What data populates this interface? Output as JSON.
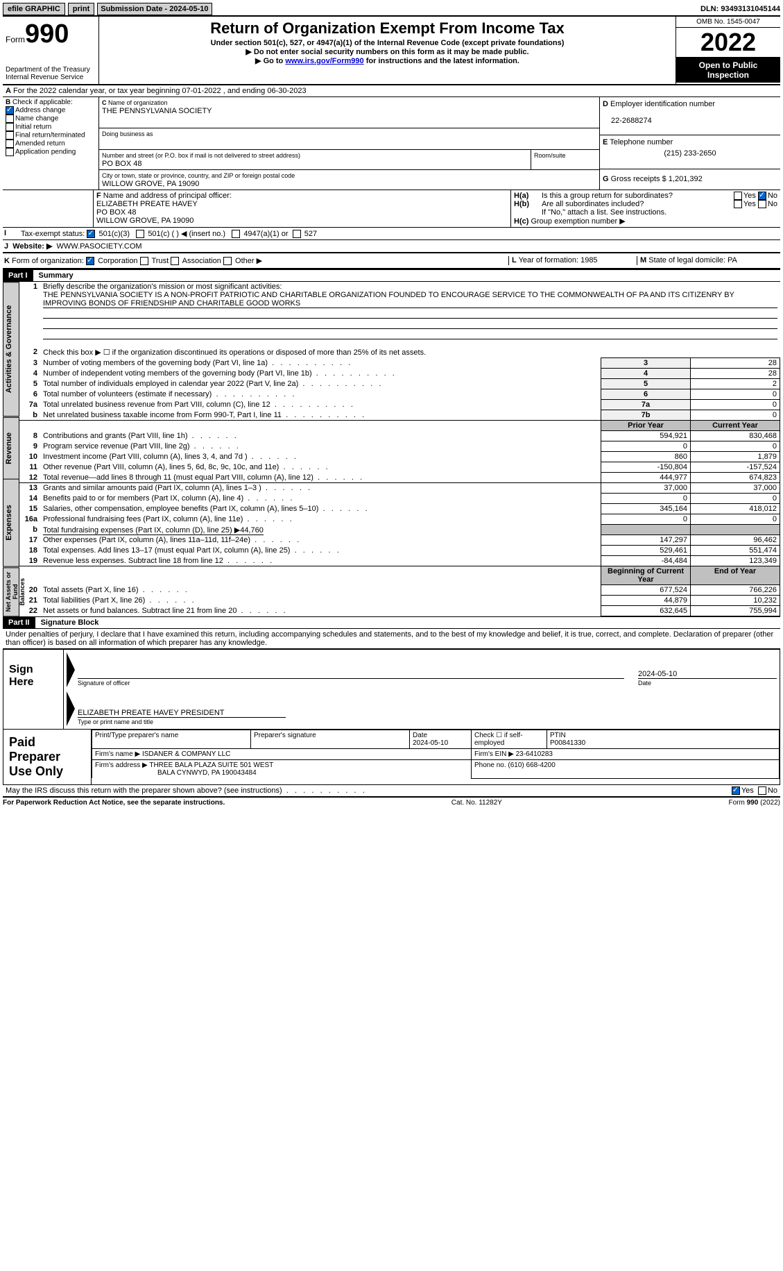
{
  "topbar": {
    "efile": "efile GRAPHIC",
    "print": "print",
    "subdate_label": "Submission Date - 2024-05-10",
    "dln": "DLN: 93493131045144"
  },
  "header": {
    "form_label": "Form",
    "form_num": "990",
    "dept": "Department of the Treasury",
    "irs": "Internal Revenue Service",
    "title": "Return of Organization Exempt From Income Tax",
    "subtitle": "Under section 501(c), 527, or 4947(a)(1) of the Internal Revenue Code (except private foundations)",
    "note1": "Do not enter social security numbers on this form as it may be made public.",
    "note2_pre": "Go to ",
    "note2_link": "www.irs.gov/Form990",
    "note2_post": " for instructions and the latest information.",
    "omb": "OMB No. 1545-0047",
    "year": "2022",
    "open": "Open to Public Inspection"
  },
  "lineA": "For the 2022 calendar year, or tax year beginning 07-01-2022   , and ending 06-30-2023",
  "sectionB": {
    "label": "Check if applicable:",
    "addr": "Address change",
    "name": "Name change",
    "initial": "Initial return",
    "final": "Final return/terminated",
    "amended": "Amended return",
    "app": "Application pending"
  },
  "sectionC": {
    "name_label": "Name of organization",
    "name": "THE PENNSYLVANIA SOCIETY",
    "dba_label": "Doing business as",
    "addr_label": "Number and street (or P.O. box if mail is not delivered to street address)",
    "room_label": "Room/suite",
    "addr": "PO BOX 48",
    "city_label": "City or town, state or province, country, and ZIP or foreign postal code",
    "city": "WILLOW GROVE, PA  19090"
  },
  "sectionD": {
    "label": "Employer identification number",
    "ein": "22-2688274"
  },
  "sectionE": {
    "label": "Telephone number",
    "phone": "(215) 233-2650"
  },
  "sectionG": {
    "label": "Gross receipts $",
    "val": "1,201,392"
  },
  "sectionF": {
    "label": "Name and address of principal officer:",
    "name": "ELIZABETH PREATE HAVEY",
    "addr1": "PO BOX 48",
    "addr2": "WILLOW GROVE, PA  19090"
  },
  "sectionH": {
    "a": "Is this a group return for subordinates?",
    "b": "Are all subordinates included?",
    "b_note": "If \"No,\" attach a list. See instructions.",
    "c": "Group exemption number ▶"
  },
  "sectionI": {
    "label": "Tax-exempt status:",
    "c3": "501(c)(3)",
    "cblank": "501(c) (  ) ◀ (insert no.)",
    "a1": "4947(a)(1) or",
    "s527": "527"
  },
  "sectionJ": {
    "label": "Website: ▶",
    "url": "WWW.PASOCIETY.COM"
  },
  "sectionK": {
    "label": "Form of organization:",
    "corp": "Corporation",
    "trust": "Trust",
    "assoc": "Association",
    "other": "Other ▶"
  },
  "sectionL": {
    "label": "Year of formation:",
    "val": "1985"
  },
  "sectionM": {
    "label": "State of legal domicile:",
    "val": "PA"
  },
  "part1": {
    "header": "Part I",
    "title": "Summary",
    "tabs": {
      "ag": "Activities & Governance",
      "rev": "Revenue",
      "exp": "Expenses",
      "net": "Net Assets or Fund Balances"
    },
    "line1_label": "Briefly describe the organization's mission or most significant activities:",
    "line1_text": "THE PENNSYLVANIA SOCIETY IS A NON-PROFIT PATRIOTIC AND CHARITABLE ORGANIZATION FOUNDED TO ENCOURAGE SERVICE TO THE COMMONWEALTH OF PA AND ITS CITIZENRY BY IMPROVING BONDS OF FRIENDSHIP AND CHARITABLE GOOD WORKS",
    "line2": "Check this box ▶ ☐ if the organization discontinued its operations or disposed of more than 25% of its net assets.",
    "rows_ag": [
      {
        "n": "3",
        "label": "Number of voting members of the governing body (Part VI, line 1a)",
        "box": "3",
        "val": "28"
      },
      {
        "n": "4",
        "label": "Number of independent voting members of the governing body (Part VI, line 1b)",
        "box": "4",
        "val": "28"
      },
      {
        "n": "5",
        "label": "Total number of individuals employed in calendar year 2022 (Part V, line 2a)",
        "box": "5",
        "val": "2"
      },
      {
        "n": "6",
        "label": "Total number of volunteers (estimate if necessary)",
        "box": "6",
        "val": "0"
      },
      {
        "n": "7a",
        "label": "Total unrelated business revenue from Part VIII, column (C), line 12",
        "box": "7a",
        "val": "0"
      },
      {
        "n": "b",
        "label": "Net unrelated business taxable income from Form 990-T, Part I, line 11",
        "box": "7b",
        "val": "0"
      }
    ],
    "col_headers": {
      "prior": "Prior Year",
      "current": "Current Year"
    },
    "rows_rev": [
      {
        "n": "8",
        "label": "Contributions and grants (Part VIII, line 1h)",
        "p": "594,921",
        "c": "830,468"
      },
      {
        "n": "9",
        "label": "Program service revenue (Part VIII, line 2g)",
        "p": "0",
        "c": "0"
      },
      {
        "n": "10",
        "label": "Investment income (Part VIII, column (A), lines 3, 4, and 7d )",
        "p": "860",
        "c": "1,879"
      },
      {
        "n": "11",
        "label": "Other revenue (Part VIII, column (A), lines 5, 6d, 8c, 9c, 10c, and 11e)",
        "p": "-150,804",
        "c": "-157,524"
      },
      {
        "n": "12",
        "label": "Total revenue—add lines 8 through 11 (must equal Part VIII, column (A), line 12)",
        "p": "444,977",
        "c": "674,823"
      }
    ],
    "rows_exp": [
      {
        "n": "13",
        "label": "Grants and similar amounts paid (Part IX, column (A), lines 1–3 )",
        "p": "37,000",
        "c": "37,000"
      },
      {
        "n": "14",
        "label": "Benefits paid to or for members (Part IX, column (A), line 4)",
        "p": "0",
        "c": "0"
      },
      {
        "n": "15",
        "label": "Salaries, other compensation, employee benefits (Part IX, column (A), lines 5–10)",
        "p": "345,164",
        "c": "418,012"
      },
      {
        "n": "16a",
        "label": "Professional fundraising fees (Part IX, column (A), line 11e)",
        "p": "0",
        "c": "0"
      }
    ],
    "line16b": "Total fundraising expenses (Part IX, column (D), line 25) ▶44,760",
    "rows_exp2": [
      {
        "n": "17",
        "label": "Other expenses (Part IX, column (A), lines 11a–11d, 11f–24e)",
        "p": "147,297",
        "c": "96,462"
      },
      {
        "n": "18",
        "label": "Total expenses. Add lines 13–17 (must equal Part IX, column (A), line 25)",
        "p": "529,461",
        "c": "551,474"
      },
      {
        "n": "19",
        "label": "Revenue less expenses. Subtract line 18 from line 12",
        "p": "-84,484",
        "c": "123,349"
      }
    ],
    "net_headers": {
      "begin": "Beginning of Current Year",
      "end": "End of Year"
    },
    "rows_net": [
      {
        "n": "20",
        "label": "Total assets (Part X, line 16)",
        "p": "677,524",
        "c": "766,226"
      },
      {
        "n": "21",
        "label": "Total liabilities (Part X, line 26)",
        "p": "44,879",
        "c": "10,232"
      },
      {
        "n": "22",
        "label": "Net assets or fund balances. Subtract line 21 from line 20",
        "p": "632,645",
        "c": "755,994"
      }
    ]
  },
  "part2": {
    "header": "Part II",
    "title": "Signature Block",
    "decl": "Under penalties of perjury, I declare that I have examined this return, including accompanying schedules and statements, and to the best of my knowledge and belief, it is true, correct, and complete. Declaration of preparer (other than officer) is based on all information of which preparer has any knowledge.",
    "sign_here": "Sign Here",
    "sig_officer": "Signature of officer",
    "sig_date": "2024-05-10",
    "sig_name": "ELIZABETH PREATE HAVEY  PRESIDENT",
    "sig_name_label": "Type or print name and title",
    "paid_label": "Paid Preparer Use Only",
    "prep_name_h": "Print/Type preparer's name",
    "prep_sig_h": "Preparer's signature",
    "prep_date_h": "Date",
    "prep_date": "2024-05-10",
    "prep_check": "Check ☐ if self-employed",
    "ptin_h": "PTIN",
    "ptin": "P00841330",
    "firm_name_h": "Firm's name    ▶",
    "firm_name": "ISDANER & COMPANY LLC",
    "firm_ein_h": "Firm's EIN ▶",
    "firm_ein": "23-6410283",
    "firm_addr_h": "Firm's address ▶",
    "firm_addr1": "THREE BALA PLAZA SUITE 501 WEST",
    "firm_addr2": "BALA CYNWYD, PA  190043484",
    "firm_phone_h": "Phone no.",
    "firm_phone": "(610) 668-4200",
    "discuss": "May the IRS discuss this return with the preparer shown above? (see instructions)"
  },
  "footer": {
    "pra": "For Paperwork Reduction Act Notice, see the separate instructions.",
    "cat": "Cat. No. 11282Y",
    "form": "Form 990 (2022)"
  },
  "yes": "Yes",
  "no": "No"
}
